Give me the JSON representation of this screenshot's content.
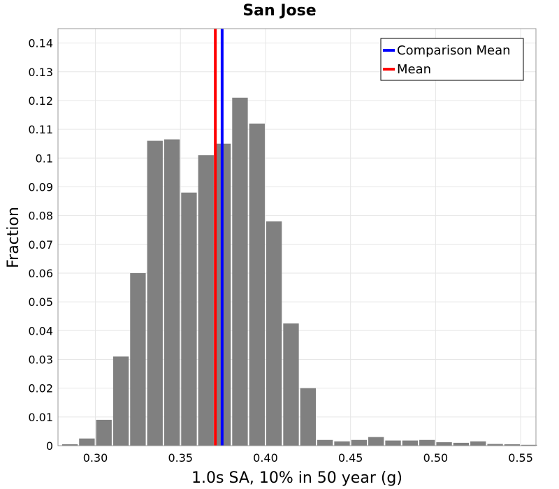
{
  "chart_data": {
    "type": "bar",
    "title": "San Jose",
    "xlabel": "1.0s SA, 10% in 50 year (g)",
    "ylabel": "Fraction",
    "xlim": [
      0.278,
      0.559
    ],
    "ylim": [
      0,
      0.145
    ],
    "xticks": [
      0.3,
      0.35,
      0.4,
      0.45,
      0.5,
      0.55
    ],
    "xtick_labels": [
      "0.30",
      "0.35",
      "0.40",
      "0.45",
      "0.50",
      "0.55"
    ],
    "yticks": [
      0,
      0.01,
      0.02,
      0.03,
      0.04,
      0.05,
      0.06,
      0.07,
      0.08,
      0.09,
      0.1,
      0.11,
      0.12,
      0.13,
      0.14
    ],
    "ytick_labels": [
      "0",
      "0.01",
      "0.02",
      "0.03",
      "0.04",
      "0.05",
      "0.06",
      "0.07",
      "0.08",
      "0.09",
      "0.1",
      "0.11",
      "0.12",
      "0.13",
      "0.14"
    ],
    "grid": true,
    "bin_width": 0.01,
    "bar_color": "#808080",
    "bin_starts": [
      0.28,
      0.29,
      0.3,
      0.31,
      0.32,
      0.33,
      0.34,
      0.35,
      0.36,
      0.37,
      0.38,
      0.39,
      0.4,
      0.41,
      0.42,
      0.43,
      0.44,
      0.45,
      0.46,
      0.47,
      0.48,
      0.49,
      0.5,
      0.51,
      0.52,
      0.53,
      0.54,
      0.55
    ],
    "values": [
      0.0005,
      0.0025,
      0.009,
      0.031,
      0.06,
      0.106,
      0.1065,
      0.088,
      0.101,
      0.105,
      0.121,
      0.112,
      0.078,
      0.0425,
      0.02,
      0.002,
      0.0015,
      0.002,
      0.003,
      0.0018,
      0.0018,
      0.002,
      0.0012,
      0.001,
      0.0015,
      0.0006,
      0.0005,
      0.0003
    ],
    "lines": [
      {
        "name": "Comparison Mean",
        "x": 0.3745,
        "color": "#0000ff"
      },
      {
        "name": "Mean",
        "x": 0.3705,
        "color": "#ff0000"
      }
    ],
    "legend_position": "top-right"
  }
}
